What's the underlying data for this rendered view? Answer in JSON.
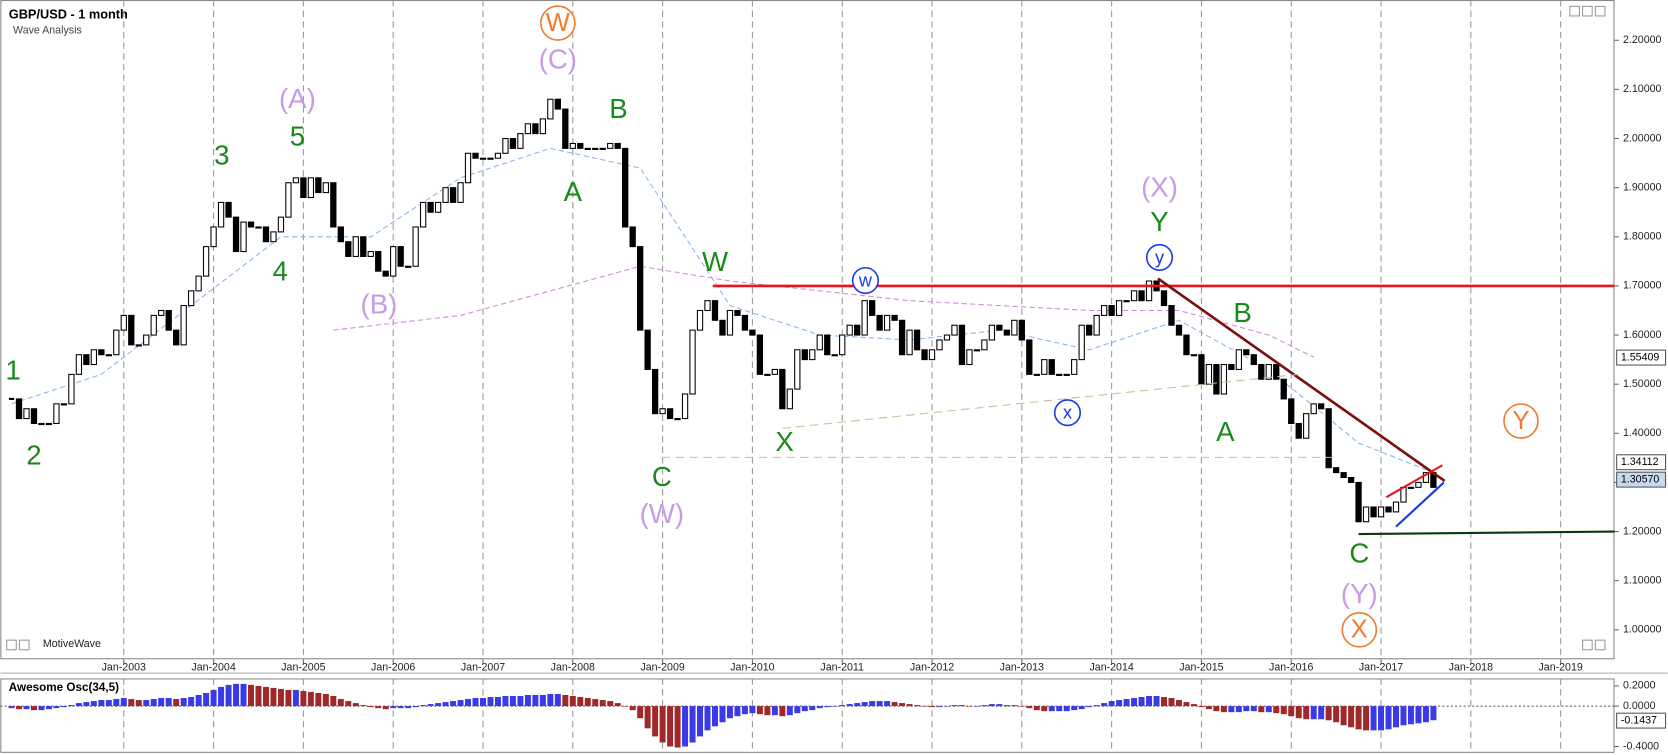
{
  "chart_data": {
    "type": "candlestick",
    "title": "GBP/USD - 1 month",
    "subtitle": "Wave Analysis",
    "watermark": "MotiveWave",
    "closes": [
      1.47,
      1.43,
      1.45,
      1.42,
      1.42,
      1.42,
      1.46,
      1.46,
      1.52,
      1.56,
      1.54,
      1.57,
      1.56,
      1.56,
      1.61,
      1.64,
      1.58,
      1.58,
      1.6,
      1.64,
      1.65,
      1.61,
      1.58,
      1.66,
      1.69,
      1.72,
      1.78,
      1.82,
      1.87,
      1.84,
      1.77,
      1.83,
      1.82,
      1.82,
      1.79,
      1.81,
      1.84,
      1.91,
      1.92,
      1.88,
      1.92,
      1.89,
      1.91,
      1.82,
      1.79,
      1.76,
      1.8,
      1.76,
      1.77,
      1.73,
      1.72,
      1.78,
      1.74,
      1.74,
      1.82,
      1.87,
      1.85,
      1.87,
      1.9,
      1.87,
      1.91,
      1.97,
      1.96,
      1.96,
      1.96,
      1.97,
      2.0,
      1.98,
      2.01,
      2.03,
      2.01,
      2.04,
      2.08,
      2.06,
      1.98,
      1.99,
      1.98,
      1.98,
      1.98,
      1.98,
      1.99,
      1.98,
      1.82,
      1.78,
      1.61,
      1.53,
      1.44,
      1.45,
      1.43,
      1.43,
      1.48,
      1.61,
      1.65,
      1.67,
      1.63,
      1.6,
      1.65,
      1.64,
      1.61,
      1.6,
      1.52,
      1.52,
      1.53,
      1.45,
      1.49,
      1.57,
      1.55,
      1.57,
      1.6,
      1.56,
      1.56,
      1.6,
      1.62,
      1.6,
      1.67,
      1.64,
      1.61,
      1.64,
      1.63,
      1.56,
      1.61,
      1.57,
      1.55,
      1.57,
      1.59,
      1.6,
      1.62,
      1.54,
      1.57,
      1.57,
      1.59,
      1.62,
      1.61,
      1.6,
      1.63,
      1.59,
      1.52,
      1.52,
      1.55,
      1.52,
      1.52,
      1.52,
      1.55,
      1.62,
      1.6,
      1.64,
      1.66,
      1.64,
      1.67,
      1.67,
      1.69,
      1.67,
      1.71,
      1.69,
      1.66,
      1.62,
      1.6,
      1.56,
      1.56,
      1.5,
      1.54,
      1.48,
      1.54,
      1.53,
      1.57,
      1.56,
      1.54,
      1.51,
      1.54,
      1.51,
      1.47,
      1.42,
      1.39,
      1.44,
      1.46,
      1.45,
      1.33,
      1.32,
      1.31,
      1.3,
      1.22,
      1.25,
      1.23,
      1.25,
      1.24,
      1.26,
      1.29,
      1.29,
      1.3,
      1.32,
      1.29
    ],
    "up_color": "#ffffff",
    "down_color": "#000000",
    "xlim": [
      -1.5,
      214.2
    ],
    "xticks": [
      {
        "value": 15,
        "label": "Jan-2003"
      },
      {
        "value": 27,
        "label": "Jan-2004"
      },
      {
        "value": 39,
        "label": "Jan-2005"
      },
      {
        "value": 51,
        "label": "Jan-2006"
      },
      {
        "value": 63,
        "label": "Jan-2007"
      },
      {
        "value": 75,
        "label": "Jan-2008"
      },
      {
        "value": 87,
        "label": "Jan-2009"
      },
      {
        "value": 99,
        "label": "Jan-2010"
      },
      {
        "value": 111,
        "label": "Jan-2011"
      },
      {
        "value": 123,
        "label": "Jan-2012"
      },
      {
        "value": 135,
        "label": "Jan-2013"
      },
      {
        "value": 147,
        "label": "Jan-2014"
      },
      {
        "value": 159,
        "label": "Jan-2015"
      },
      {
        "value": 171,
        "label": "Jan-2016"
      },
      {
        "value": 183,
        "label": "Jan-2017"
      },
      {
        "value": 195,
        "label": "Jan-2018"
      },
      {
        "value": 207,
        "label": "Jan-2019"
      }
    ],
    "ylim": [
      0.94,
      2.282
    ],
    "yticks": [
      {
        "value": 1.0,
        "label": "1.00000"
      },
      {
        "value": 1.1,
        "label": "1.10000"
      },
      {
        "value": 1.2,
        "label": "1.20000"
      },
      {
        "value": 1.3,
        "label": "1.30000"
      },
      {
        "value": 1.4,
        "label": "1.40000"
      },
      {
        "value": 1.5,
        "label": "1.50000"
      },
      {
        "value": 1.6,
        "label": "1.60000"
      },
      {
        "value": 1.7,
        "label": "1.70000"
      },
      {
        "value": 1.8,
        "label": "1.80000"
      },
      {
        "value": 1.9,
        "label": "1.90000"
      },
      {
        "value": 2.0,
        "label": "2.00000"
      },
      {
        "value": 2.1,
        "label": "2.10000"
      },
      {
        "value": 2.2,
        "label": "2.20000"
      }
    ],
    "grid": true,
    "price_tags": [
      {
        "value": 1.55409,
        "label": "1.55409",
        "color": "#ffffff"
      },
      {
        "value": 1.34112,
        "label": "1.34112",
        "color": "#ffffff"
      },
      {
        "value": 1.3057,
        "label": "1.30570",
        "color": "#c8d8f0"
      }
    ],
    "moving_averages": [
      {
        "color": "#8ab4f0",
        "x": [
          0,
          12,
          24,
          36,
          48,
          60,
          72,
          84,
          96,
          108,
          120,
          132,
          144,
          156,
          168,
          180,
          190
        ],
        "values": [
          1.46,
          1.52,
          1.66,
          1.8,
          1.8,
          1.92,
          1.98,
          1.94,
          1.66,
          1.6,
          1.59,
          1.61,
          1.57,
          1.63,
          1.53,
          1.38,
          1.32
        ]
      },
      {
        "color": "#d08ad8",
        "x": [
          43,
          60,
          84,
          96,
          120,
          144,
          156,
          168,
          174
        ],
        "values": [
          1.61,
          1.64,
          1.74,
          1.71,
          1.67,
          1.65,
          1.65,
          1.6,
          1.555
        ]
      }
    ],
    "lines": [
      {
        "color": "#e8161c",
        "width": 2.5,
        "dash": false,
        "x": [
          93.7,
          214.2
        ],
        "values": [
          1.7,
          1.7
        ]
      },
      {
        "color": "#7a1010",
        "width": 2.5,
        "dash": false,
        "x": [
          153.2,
          191.5
        ],
        "values": [
          1.715,
          1.303
        ]
      },
      {
        "color": "#0a3a0a",
        "width": 2,
        "dash": false,
        "x": [
          180,
          214.2
        ],
        "values": [
          1.195,
          1.2
        ]
      },
      {
        "color": "#1a3ae8",
        "width": 2,
        "dash": false,
        "x": [
          185,
          191.4
        ],
        "values": [
          1.21,
          1.3
        ]
      },
      {
        "color": "#e8161c",
        "width": 2,
        "dash": false,
        "x": [
          183.7,
          191.2
        ],
        "values": [
          1.27,
          1.335
        ]
      },
      {
        "color": "#c8c090",
        "width": 1,
        "dash": true,
        "x": [
          86.9,
          176.5
        ],
        "values": [
          1.351,
          1.351
        ]
      },
      {
        "color": "#c8c090",
        "width": 1,
        "dash": true,
        "x": [
          103,
          172
        ],
        "values": [
          1.41,
          1.52
        ]
      }
    ],
    "annotations": [
      {
        "text": "1",
        "x": 0.2,
        "y": 1.524,
        "color": "#1a8a1a",
        "style": "plain"
      },
      {
        "text": "2",
        "x": 3,
        "y": 1.351,
        "color": "#1a8a1a",
        "style": "plain"
      },
      {
        "text": "3",
        "x": 28.1,
        "y": 1.962,
        "color": "#1a8a1a",
        "style": "plain"
      },
      {
        "text": "4",
        "x": 35.9,
        "y": 1.726,
        "color": "#1a8a1a",
        "style": "plain"
      },
      {
        "text": "5",
        "x": 38.2,
        "y": 2.001,
        "color": "#1a8a1a",
        "style": "plain"
      },
      {
        "text": "(A)",
        "x": 38.2,
        "y": 2.077,
        "color": "#c89ae8",
        "style": "plain"
      },
      {
        "text": "(B)",
        "x": 49.1,
        "y": 1.659,
        "color": "#c89ae8",
        "style": "plain"
      },
      {
        "text": "W",
        "x": 73,
        "y": 2.235,
        "color": "#f07a30",
        "style": "circle"
      },
      {
        "text": "(C)",
        "x": 73,
        "y": 2.157,
        "color": "#c89ae8",
        "style": "plain"
      },
      {
        "text": "B",
        "x": 81.1,
        "y": 2.057,
        "color": "#1a8a1a",
        "style": "plain"
      },
      {
        "text": "A",
        "x": 75,
        "y": 1.888,
        "color": "#1a8a1a",
        "style": "plain"
      },
      {
        "text": "W",
        "x": 94,
        "y": 1.745,
        "color": "#1a8a1a",
        "style": "plain"
      },
      {
        "text": "C",
        "x": 86.9,
        "y": 1.308,
        "color": "#1a8a1a",
        "style": "plain"
      },
      {
        "text": "(W)",
        "x": 86.9,
        "y": 1.232,
        "color": "#c89ae8",
        "style": "plain"
      },
      {
        "text": "X",
        "x": 103.3,
        "y": 1.379,
        "color": "#1a8a1a",
        "style": "plain"
      },
      {
        "text": "w",
        "x": 114.1,
        "y": 1.711,
        "color": "#1a3ae8",
        "style": "circle"
      },
      {
        "text": "x",
        "x": 141.1,
        "y": 1.442,
        "color": "#1a3ae8",
        "style": "circle"
      },
      {
        "text": "(X)",
        "x": 153.4,
        "y": 1.897,
        "color": "#c89ae8",
        "style": "plain"
      },
      {
        "text": "Y",
        "x": 153.4,
        "y": 1.827,
        "color": "#1a8a1a",
        "style": "plain"
      },
      {
        "text": "y",
        "x": 153.4,
        "y": 1.758,
        "color": "#1a3ae8",
        "style": "circle"
      },
      {
        "text": "B",
        "x": 164.5,
        "y": 1.641,
        "color": "#1a8a1a",
        "style": "plain"
      },
      {
        "text": "A",
        "x": 162.2,
        "y": 1.399,
        "color": "#1a8a1a",
        "style": "plain"
      },
      {
        "text": "C",
        "x": 180.1,
        "y": 1.152,
        "color": "#1a8a1a",
        "style": "plain"
      },
      {
        "text": "(Y)",
        "x": 180.1,
        "y": 1.069,
        "color": "#c89ae8",
        "style": "plain"
      },
      {
        "text": "X",
        "x": 180.1,
        "y": 1.0,
        "color": "#f07a30",
        "style": "circle"
      },
      {
        "text": "Y",
        "x": 201.7,
        "y": 1.425,
        "color": "#f07a30",
        "style": "circle"
      }
    ],
    "oscillator": {
      "title": "Awesome Osc(34,5)",
      "up_color": "#3a3ae8",
      "down_color": "#a02828",
      "values": [
        -0.02,
        -0.03,
        -0.03,
        -0.04,
        -0.04,
        -0.03,
        -0.02,
        -0.01,
        0.01,
        0.03,
        0.04,
        0.05,
        0.06,
        0.06,
        0.07,
        0.08,
        0.07,
        0.06,
        0.06,
        0.07,
        0.08,
        0.08,
        0.07,
        0.08,
        0.09,
        0.11,
        0.13,
        0.16,
        0.19,
        0.21,
        0.22,
        0.22,
        0.21,
        0.2,
        0.19,
        0.18,
        0.17,
        0.16,
        0.16,
        0.15,
        0.14,
        0.13,
        0.12,
        0.1,
        0.07,
        0.05,
        0.03,
        0.01,
        -0.01,
        -0.02,
        -0.03,
        -0.02,
        -0.02,
        -0.02,
        -0.01,
        0.01,
        0.02,
        0.03,
        0.04,
        0.05,
        0.06,
        0.07,
        0.08,
        0.08,
        0.09,
        0.09,
        0.1,
        0.1,
        0.1,
        0.11,
        0.11,
        0.11,
        0.12,
        0.12,
        0.11,
        0.1,
        0.09,
        0.08,
        0.07,
        0.06,
        0.05,
        0.03,
        0.0,
        -0.04,
        -0.12,
        -0.22,
        -0.3,
        -0.36,
        -0.4,
        -0.41,
        -0.4,
        -0.36,
        -0.3,
        -0.24,
        -0.2,
        -0.16,
        -0.12,
        -0.1,
        -0.08,
        -0.07,
        -0.08,
        -0.09,
        -0.09,
        -0.1,
        -0.09,
        -0.07,
        -0.05,
        -0.04,
        -0.02,
        -0.01,
        0.0,
        0.01,
        0.02,
        0.03,
        0.04,
        0.05,
        0.05,
        0.05,
        0.04,
        0.03,
        0.02,
        0.01,
        0.0,
        -0.01,
        -0.01,
        0.0,
        0.01,
        0.01,
        0.0,
        0.0,
        0.01,
        0.02,
        0.02,
        0.01,
        0.01,
        0.0,
        -0.02,
        -0.04,
        -0.05,
        -0.05,
        -0.05,
        -0.05,
        -0.04,
        -0.03,
        -0.01,
        0.01,
        0.03,
        0.05,
        0.06,
        0.07,
        0.08,
        0.09,
        0.1,
        0.1,
        0.09,
        0.08,
        0.06,
        0.04,
        0.02,
        -0.01,
        -0.03,
        -0.05,
        -0.06,
        -0.06,
        -0.06,
        -0.05,
        -0.05,
        -0.06,
        -0.06,
        -0.07,
        -0.08,
        -0.1,
        -0.12,
        -0.13,
        -0.13,
        -0.13,
        -0.14,
        -0.16,
        -0.19,
        -0.21,
        -0.23,
        -0.24,
        -0.24,
        -0.24,
        -0.23,
        -0.21,
        -0.19,
        -0.18,
        -0.17,
        -0.16,
        -0.14
      ],
      "ylim": [
        -0.463,
        0.274
      ],
      "yticks": [
        {
          "value": 0.2,
          "label": "0.2000"
        },
        {
          "value": 0,
          "label": "0.0000"
        },
        {
          "value": -0.4,
          "label": "-0.4000"
        }
      ],
      "price_tag": {
        "value": -0.1437,
        "label": "-0.1437"
      }
    }
  }
}
